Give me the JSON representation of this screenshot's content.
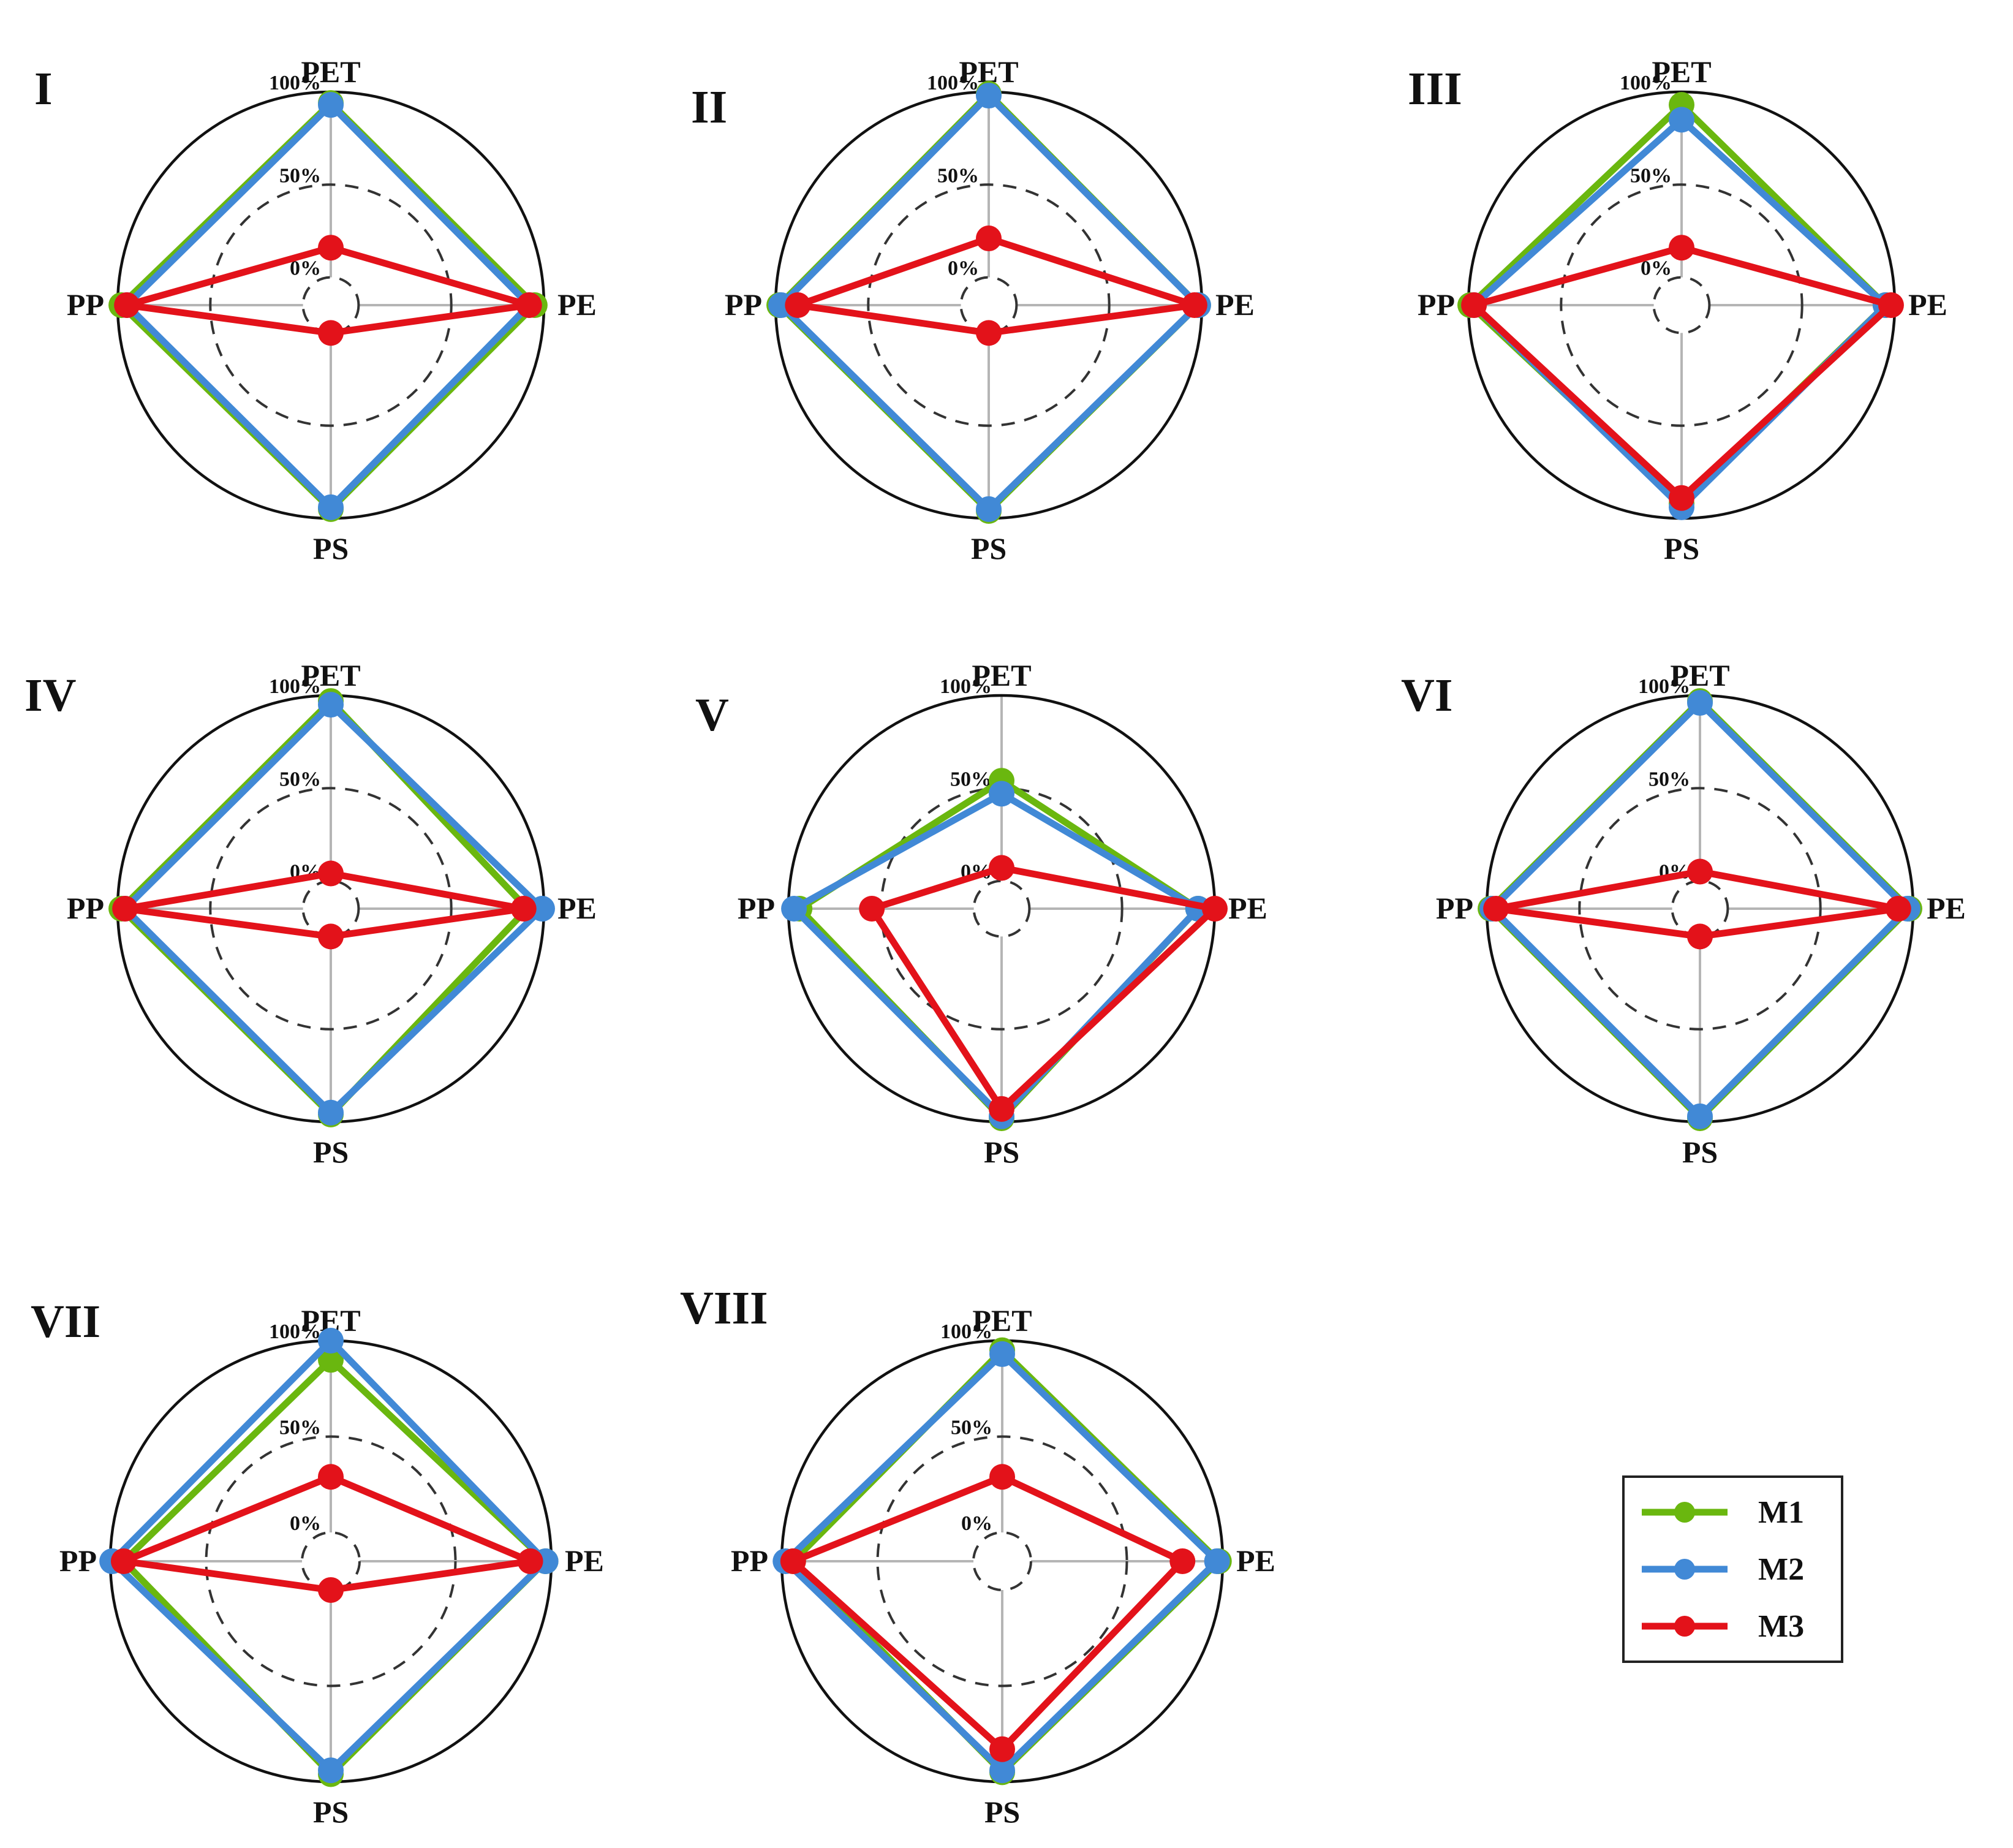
{
  "chart_data": {
    "type": "radar",
    "axes": [
      "PET",
      "PE",
      "PS",
      "PP"
    ],
    "rings": [
      {
        "label": "0%",
        "value": 0
      },
      {
        "label": "50%",
        "value": 50
      },
      {
        "label": "100%",
        "value": 100
      }
    ],
    "radial_range": [
      -15,
      100
    ],
    "legend": {
      "position": "bottom-right",
      "entries": [
        {
          "name": "M1",
          "color": "#6ab70f"
        },
        {
          "name": "M2",
          "color": "#4189d6"
        },
        {
          "name": "M3",
          "color": "#e3121a"
        }
      ]
    },
    "charts": [
      {
        "title": "I",
        "series": [
          {
            "name": "M1",
            "values": {
              "PET": 94,
              "PE": 95,
              "PS": 95,
              "PP": 98
            }
          },
          {
            "name": "M2",
            "values": {
              "PET": 93,
              "PE": 92,
              "PS": 94,
              "PP": 95
            }
          },
          {
            "name": "M3",
            "values": {
              "PET": 16,
              "PE": 92,
              "PS": 0,
              "PP": 95
            }
          }
        ]
      },
      {
        "title": "II",
        "series": [
          {
            "name": "M1",
            "values": {
              "PET": 99,
              "PE": 98,
              "PS": 96,
              "PP": 98
            }
          },
          {
            "name": "M2",
            "values": {
              "PET": 98,
              "PE": 98,
              "PS": 95,
              "PP": 97
            }
          },
          {
            "name": "M3",
            "values": {
              "PET": 21,
              "PE": 96,
              "PS": 0,
              "PP": 88
            }
          }
        ]
      },
      {
        "title": "III",
        "series": [
          {
            "name": "M1",
            "values": {
              "PET": 93,
              "PE": 95,
              "PS": 92,
              "PP": 99
            }
          },
          {
            "name": "M2",
            "values": {
              "PET": 85,
              "PE": 95,
              "PS": 94,
              "PP": 97
            }
          },
          {
            "name": "M3",
            "values": {
              "PET": 16,
              "PE": 98,
              "PS": 89,
              "PP": 97
            }
          }
        ]
      },
      {
        "title": "IV",
        "series": [
          {
            "name": "M1",
            "values": {
              "PET": 97,
              "PE": 91,
              "PS": 96,
              "PP": 98
            }
          },
          {
            "name": "M2",
            "values": {
              "PET": 95,
              "PE": 99,
              "PS": 95,
              "PP": 96
            }
          },
          {
            "name": "M3",
            "values": {
              "PET": 4,
              "PE": 89,
              "PS": 0,
              "PP": 96
            }
          }
        ]
      },
      {
        "title": "V",
        "series": [
          {
            "name": "M1",
            "values": {
              "PET": 54,
              "PE": 91,
              "PS": 98,
              "PP": 94
            }
          },
          {
            "name": "M2",
            "values": {
              "PET": 47,
              "PE": 91,
              "PS": 97,
              "PP": 97
            }
          },
          {
            "name": "M3",
            "values": {
              "PET": 7,
              "PE": 100,
              "PS": 93,
              "PP": 55
            }
          }
        ]
      },
      {
        "title": "VI",
        "series": [
          {
            "name": "M1",
            "values": {
              "PET": 97,
              "PE": 98,
              "PS": 98,
              "PP": 98
            }
          },
          {
            "name": "M2",
            "values": {
              "PET": 96,
              "PE": 97,
              "PS": 97,
              "PP": 97
            }
          },
          {
            "name": "M3",
            "values": {
              "PET": 5,
              "PE": 92,
              "PS": 0,
              "PP": 95
            }
          }
        ]
      },
      {
        "title": "VII",
        "series": [
          {
            "name": "M1",
            "values": {
              "PET": 90,
              "PE": 97,
              "PS": 96,
              "PP": 93
            }
          },
          {
            "name": "M2",
            "values": {
              "PET": 100,
              "PE": 97,
              "PS": 94,
              "PP": 99
            }
          },
          {
            "name": "M3",
            "values": {
              "PET": 29,
              "PE": 89,
              "PS": 0,
              "PP": 93
            }
          }
        ]
      },
      {
        "title": "VIII",
        "series": [
          {
            "name": "M1",
            "values": {
              "PET": 95,
              "PE": 98,
              "PS": 95,
              "PP": 94
            }
          },
          {
            "name": "M2",
            "values": {
              "PET": 93,
              "PE": 97,
              "PS": 94,
              "PP": 98
            }
          },
          {
            "name": "M3",
            "values": {
              "PET": 29,
              "PE": 79,
              "PS": 83,
              "PP": 94
            }
          }
        ]
      }
    ]
  }
}
